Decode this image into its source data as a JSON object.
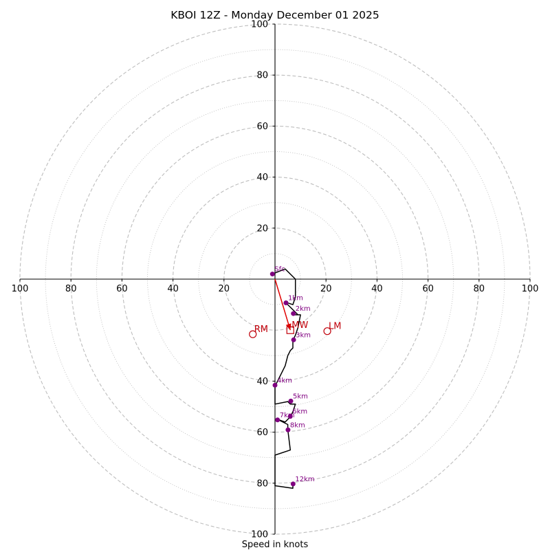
{
  "chart_data": {
    "type": "scatter",
    "subtype": "hodograph",
    "title": "KBOI 12Z - Monday December 01 2025",
    "xlabel": "Speed in knots",
    "ylabel": "",
    "xlim": [
      -100,
      100
    ],
    "ylim": [
      -100,
      100
    ],
    "rings_major": [
      20,
      40,
      60,
      80,
      100
    ],
    "rings_minor": [
      10,
      30,
      50,
      70,
      90
    ],
    "x_ticks": [
      {
        "value": -100,
        "label": "100"
      },
      {
        "value": -80,
        "label": "80"
      },
      {
        "value": -60,
        "label": "60"
      },
      {
        "value": -40,
        "label": "40"
      },
      {
        "value": -20,
        "label": "20"
      },
      {
        "value": 20,
        "label": "20"
      },
      {
        "value": 40,
        "label": "40"
      },
      {
        "value": 60,
        "label": "60"
      },
      {
        "value": 80,
        "label": "80"
      },
      {
        "value": 100,
        "label": "100"
      }
    ],
    "y_ticks": [
      {
        "value": 100,
        "label": "100"
      },
      {
        "value": 80,
        "label": "80"
      },
      {
        "value": 60,
        "label": "60"
      },
      {
        "value": 40,
        "label": "40"
      },
      {
        "value": 20,
        "label": "20"
      },
      {
        "value": -40,
        "label": "40"
      },
      {
        "value": -60,
        "label": "60"
      },
      {
        "value": -80,
        "label": "80"
      },
      {
        "value": -100,
        "label": "100"
      }
    ],
    "trace": [
      [
        -1,
        2
      ],
      [
        4,
        4
      ],
      [
        8,
        0
      ],
      [
        8,
        -4
      ],
      [
        8,
        -7
      ],
      [
        7,
        -10
      ],
      [
        4,
        -9
      ],
      [
        7,
        -12
      ],
      [
        9,
        -14
      ],
      [
        7,
        -14
      ],
      [
        10,
        -14
      ],
      [
        9,
        -19
      ],
      [
        8,
        -22
      ],
      [
        7,
        -24
      ],
      [
        7,
        -27
      ],
      [
        6,
        -28
      ],
      [
        5,
        -30
      ],
      [
        4,
        -34
      ],
      [
        2,
        -38
      ],
      [
        0,
        -42
      ],
      [
        0,
        -49
      ],
      [
        5,
        -48
      ],
      [
        6,
        -49
      ],
      [
        8,
        -49
      ],
      [
        7,
        -52
      ],
      [
        6,
        -54
      ],
      [
        5,
        -55
      ],
      [
        4,
        -56
      ],
      [
        1,
        -55
      ],
      [
        5,
        -57
      ],
      [
        5,
        -59
      ],
      [
        6,
        -67
      ],
      [
        0,
        -69
      ],
      [
        0,
        -81
      ],
      [
        7,
        -82
      ],
      [
        7,
        -80
      ]
    ],
    "height_points": [
      {
        "label": "Sfc",
        "u": -1,
        "v": 2
      },
      {
        "label": "1km",
        "u": 4.3,
        "v": -9.3
      },
      {
        "label": "2km",
        "u": 7.2,
        "v": -13.5
      },
      {
        "label": "3km",
        "u": 7.3,
        "v": -23.8
      },
      {
        "label": "4km",
        "u": 0,
        "v": -41.6
      },
      {
        "label": "5km",
        "u": 6.2,
        "v": -47.8
      },
      {
        "label": "6km",
        "u": 6,
        "v": -53.8
      },
      {
        "label": "7km",
        "u": 1,
        "v": -55.2
      },
      {
        "label": "8km",
        "u": 5.1,
        "v": -59.1
      },
      {
        "label": "12km",
        "u": 7.1,
        "v": -80.3
      }
    ],
    "vectors": [
      {
        "label": "MW",
        "u": 6,
        "v": -20,
        "marker": "square"
      },
      {
        "label": "LM",
        "u": 20.5,
        "v": -20.4,
        "marker": "circle"
      },
      {
        "label": "RM",
        "u": -8.7,
        "v": -21.6,
        "marker": "circle"
      }
    ],
    "colors": {
      "trace": "#000000",
      "height_points": "#800080",
      "vectors": "#c0000a",
      "mean_wind_arrow": "#e00000",
      "grid": "#bdbdbd"
    }
  }
}
